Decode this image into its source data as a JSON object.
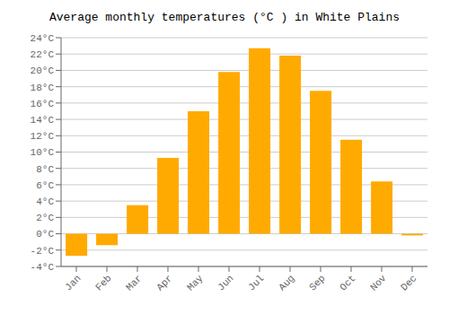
{
  "chart_data": {
    "type": "bar",
    "title": "Average monthly temperatures (°C ) in White Plains",
    "categories": [
      "Jan",
      "Feb",
      "Mar",
      "Apr",
      "May",
      "Jun",
      "Jul",
      "Aug",
      "Sep",
      "Oct",
      "Nov",
      "Dec"
    ],
    "values": [
      -2.7,
      -1.4,
      3.5,
      9.3,
      15.0,
      19.8,
      22.7,
      21.8,
      17.5,
      11.5,
      6.4,
      -0.2
    ],
    "color": "#FFAA00",
    "ylim": [
      -4,
      24
    ],
    "yticks": [
      {
        "value": -4,
        "label": "-4°C"
      },
      {
        "value": -2,
        "label": "-2°C"
      },
      {
        "value": 0,
        "label": "0°C"
      },
      {
        "value": 2,
        "label": "2°C"
      },
      {
        "value": 4,
        "label": "4°C"
      },
      {
        "value": 6,
        "label": "6°C"
      },
      {
        "value": 8,
        "label": "8°C"
      },
      {
        "value": 10,
        "label": "10°C"
      },
      {
        "value": 12,
        "label": "12°C"
      },
      {
        "value": 14,
        "label": "14°C"
      },
      {
        "value": 16,
        "label": "16°C"
      },
      {
        "value": 18,
        "label": "18°C"
      },
      {
        "value": 20,
        "label": "20°C"
      },
      {
        "value": 22,
        "label": "22°C"
      },
      {
        "value": 24,
        "label": "24°C"
      }
    ],
    "grid": true
  }
}
